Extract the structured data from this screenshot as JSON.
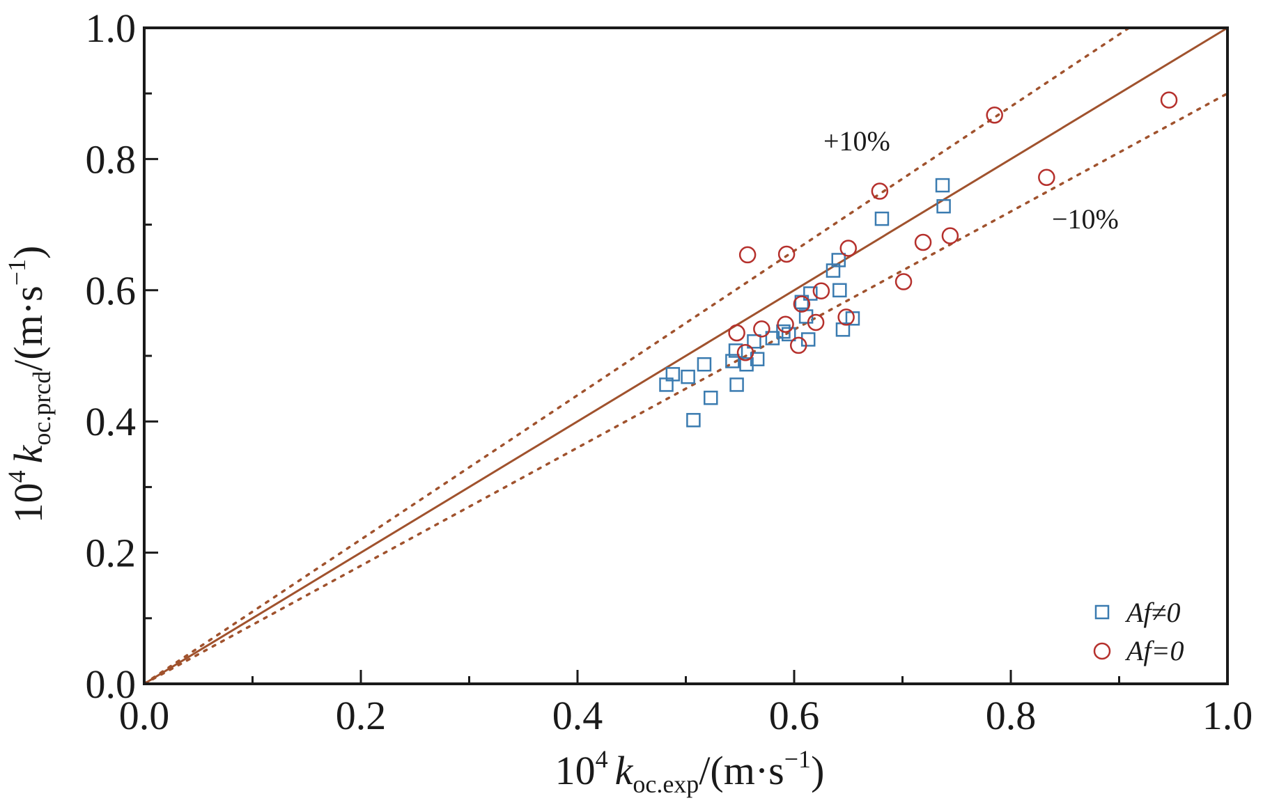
{
  "chart_data": {
    "type": "scatter",
    "title": "",
    "xlabel": {
      "prefix": "10",
      "sup": "4",
      "var": "k",
      "sub": "oc.exp",
      "unit": "/(m·s",
      "unit_sup": "−1",
      "close": ")"
    },
    "ylabel": {
      "prefix": "10",
      "sup": "4",
      "var": "k",
      "sub": "oc.prcd",
      "unit": "/(m·s",
      "unit_sup": "−1",
      "close": ")"
    },
    "xlim": [
      0.0,
      1.0
    ],
    "ylim": [
      0.0,
      1.0
    ],
    "xticks": [
      "0.0",
      "0.2",
      "0.4",
      "0.6",
      "0.8",
      "1.0"
    ],
    "yticks": [
      "0.0",
      "0.2",
      "0.4",
      "0.6",
      "0.8",
      "1.0"
    ],
    "grid": false,
    "legend_position": "bottom-right",
    "reference_lines": [
      {
        "kind": "parity",
        "style": "solid",
        "slope": 1.0
      },
      {
        "kind": "upper",
        "style": "dotted",
        "slope": 1.1,
        "label": "+10%"
      },
      {
        "kind": "lower",
        "style": "dotted",
        "slope": 0.9,
        "label": "−10%"
      }
    ],
    "line_color": "#a0522d",
    "series": [
      {
        "name": "Af≠0",
        "marker": "square",
        "color": "#3a7bb0",
        "points": [
          [
            0.482,
            0.456
          ],
          [
            0.488,
            0.472
          ],
          [
            0.502,
            0.468
          ],
          [
            0.507,
            0.402
          ],
          [
            0.517,
            0.487
          ],
          [
            0.523,
            0.436
          ],
          [
            0.543,
            0.492
          ],
          [
            0.546,
            0.508
          ],
          [
            0.547,
            0.456
          ],
          [
            0.556,
            0.487
          ],
          [
            0.563,
            0.522
          ],
          [
            0.566,
            0.495
          ],
          [
            0.58,
            0.527
          ],
          [
            0.59,
            0.537
          ],
          [
            0.595,
            0.533
          ],
          [
            0.607,
            0.582
          ],
          [
            0.611,
            0.56
          ],
          [
            0.613,
            0.525
          ],
          [
            0.615,
            0.595
          ],
          [
            0.636,
            0.63
          ],
          [
            0.641,
            0.646
          ],
          [
            0.642,
            0.6
          ],
          [
            0.645,
            0.54
          ],
          [
            0.654,
            0.557
          ],
          [
            0.681,
            0.709
          ],
          [
            0.737,
            0.76
          ],
          [
            0.738,
            0.728
          ]
        ]
      },
      {
        "name": "Af=0",
        "marker": "circle",
        "color": "#b5302c",
        "points": [
          [
            0.547,
            0.535
          ],
          [
            0.555,
            0.505
          ],
          [
            0.557,
            0.654
          ],
          [
            0.57,
            0.541
          ],
          [
            0.592,
            0.548
          ],
          [
            0.593,
            0.655
          ],
          [
            0.604,
            0.516
          ],
          [
            0.607,
            0.579
          ],
          [
            0.62,
            0.551
          ],
          [
            0.625,
            0.599
          ],
          [
            0.648,
            0.559
          ],
          [
            0.65,
            0.664
          ],
          [
            0.679,
            0.751
          ],
          [
            0.701,
            0.613
          ],
          [
            0.719,
            0.673
          ],
          [
            0.744,
            0.683
          ],
          [
            0.785,
            0.867
          ],
          [
            0.833,
            0.772
          ],
          [
            0.946,
            0.89
          ]
        ]
      }
    ]
  }
}
